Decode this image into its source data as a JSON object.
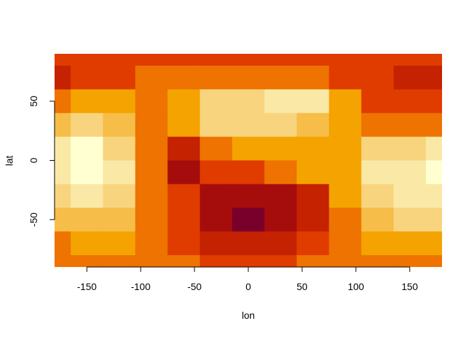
{
  "chart_data": {
    "type": "heatmap",
    "xlabel": "lon",
    "ylabel": "lat",
    "x": [
      -180,
      -150,
      -120,
      -90,
      -60,
      -30,
      0,
      30,
      60,
      90,
      120,
      150,
      180
    ],
    "y": [
      90,
      70,
      50,
      30,
      10,
      -10,
      -30,
      -50,
      -70,
      -90
    ],
    "z": [
      [
        4,
        4,
        4,
        4,
        4,
        4,
        4,
        4,
        4,
        4,
        4,
        4,
        4
      ],
      [
        3,
        4,
        4,
        5,
        5,
        5,
        5,
        5,
        5,
        4,
        4,
        3,
        3
      ],
      [
        5,
        6,
        6,
        5,
        6,
        8,
        8,
        9,
        9,
        6,
        4,
        4,
        4
      ],
      [
        7,
        8,
        7,
        5,
        6,
        8,
        8,
        8,
        7,
        6,
        5,
        5,
        5
      ],
      [
        9,
        10,
        8,
        5,
        3,
        5,
        6,
        6,
        6,
        6,
        8,
        8,
        9
      ],
      [
        9,
        10,
        9,
        5,
        2,
        4,
        4,
        5,
        6,
        6,
        9,
        9,
        10
      ],
      [
        8,
        9,
        8,
        5,
        4,
        2,
        2,
        2,
        3,
        6,
        8,
        9,
        9
      ],
      [
        7,
        7,
        7,
        5,
        4,
        2,
        1,
        2,
        3,
        5,
        7,
        8,
        8
      ],
      [
        5,
        6,
        6,
        5,
        4,
        3,
        3,
        3,
        4,
        5,
        6,
        6,
        6
      ],
      [
        5,
        5,
        5,
        5,
        5,
        4,
        4,
        4,
        5,
        5,
        5,
        5,
        5
      ]
    ],
    "colors": [
      "#7a002c",
      "#a50d0d",
      "#c42200",
      "#e03c00",
      "#ee7300",
      "#f4a300",
      "#f6bd48",
      "#f8d47e",
      "#fae8a6",
      "#ffffd2"
    ],
    "xlim": [
      -180,
      180
    ],
    "ylim": [
      -90,
      90
    ],
    "xticks": [
      -150,
      -100,
      -50,
      0,
      50,
      100,
      150
    ],
    "yticks": [
      -50,
      0,
      50
    ]
  }
}
